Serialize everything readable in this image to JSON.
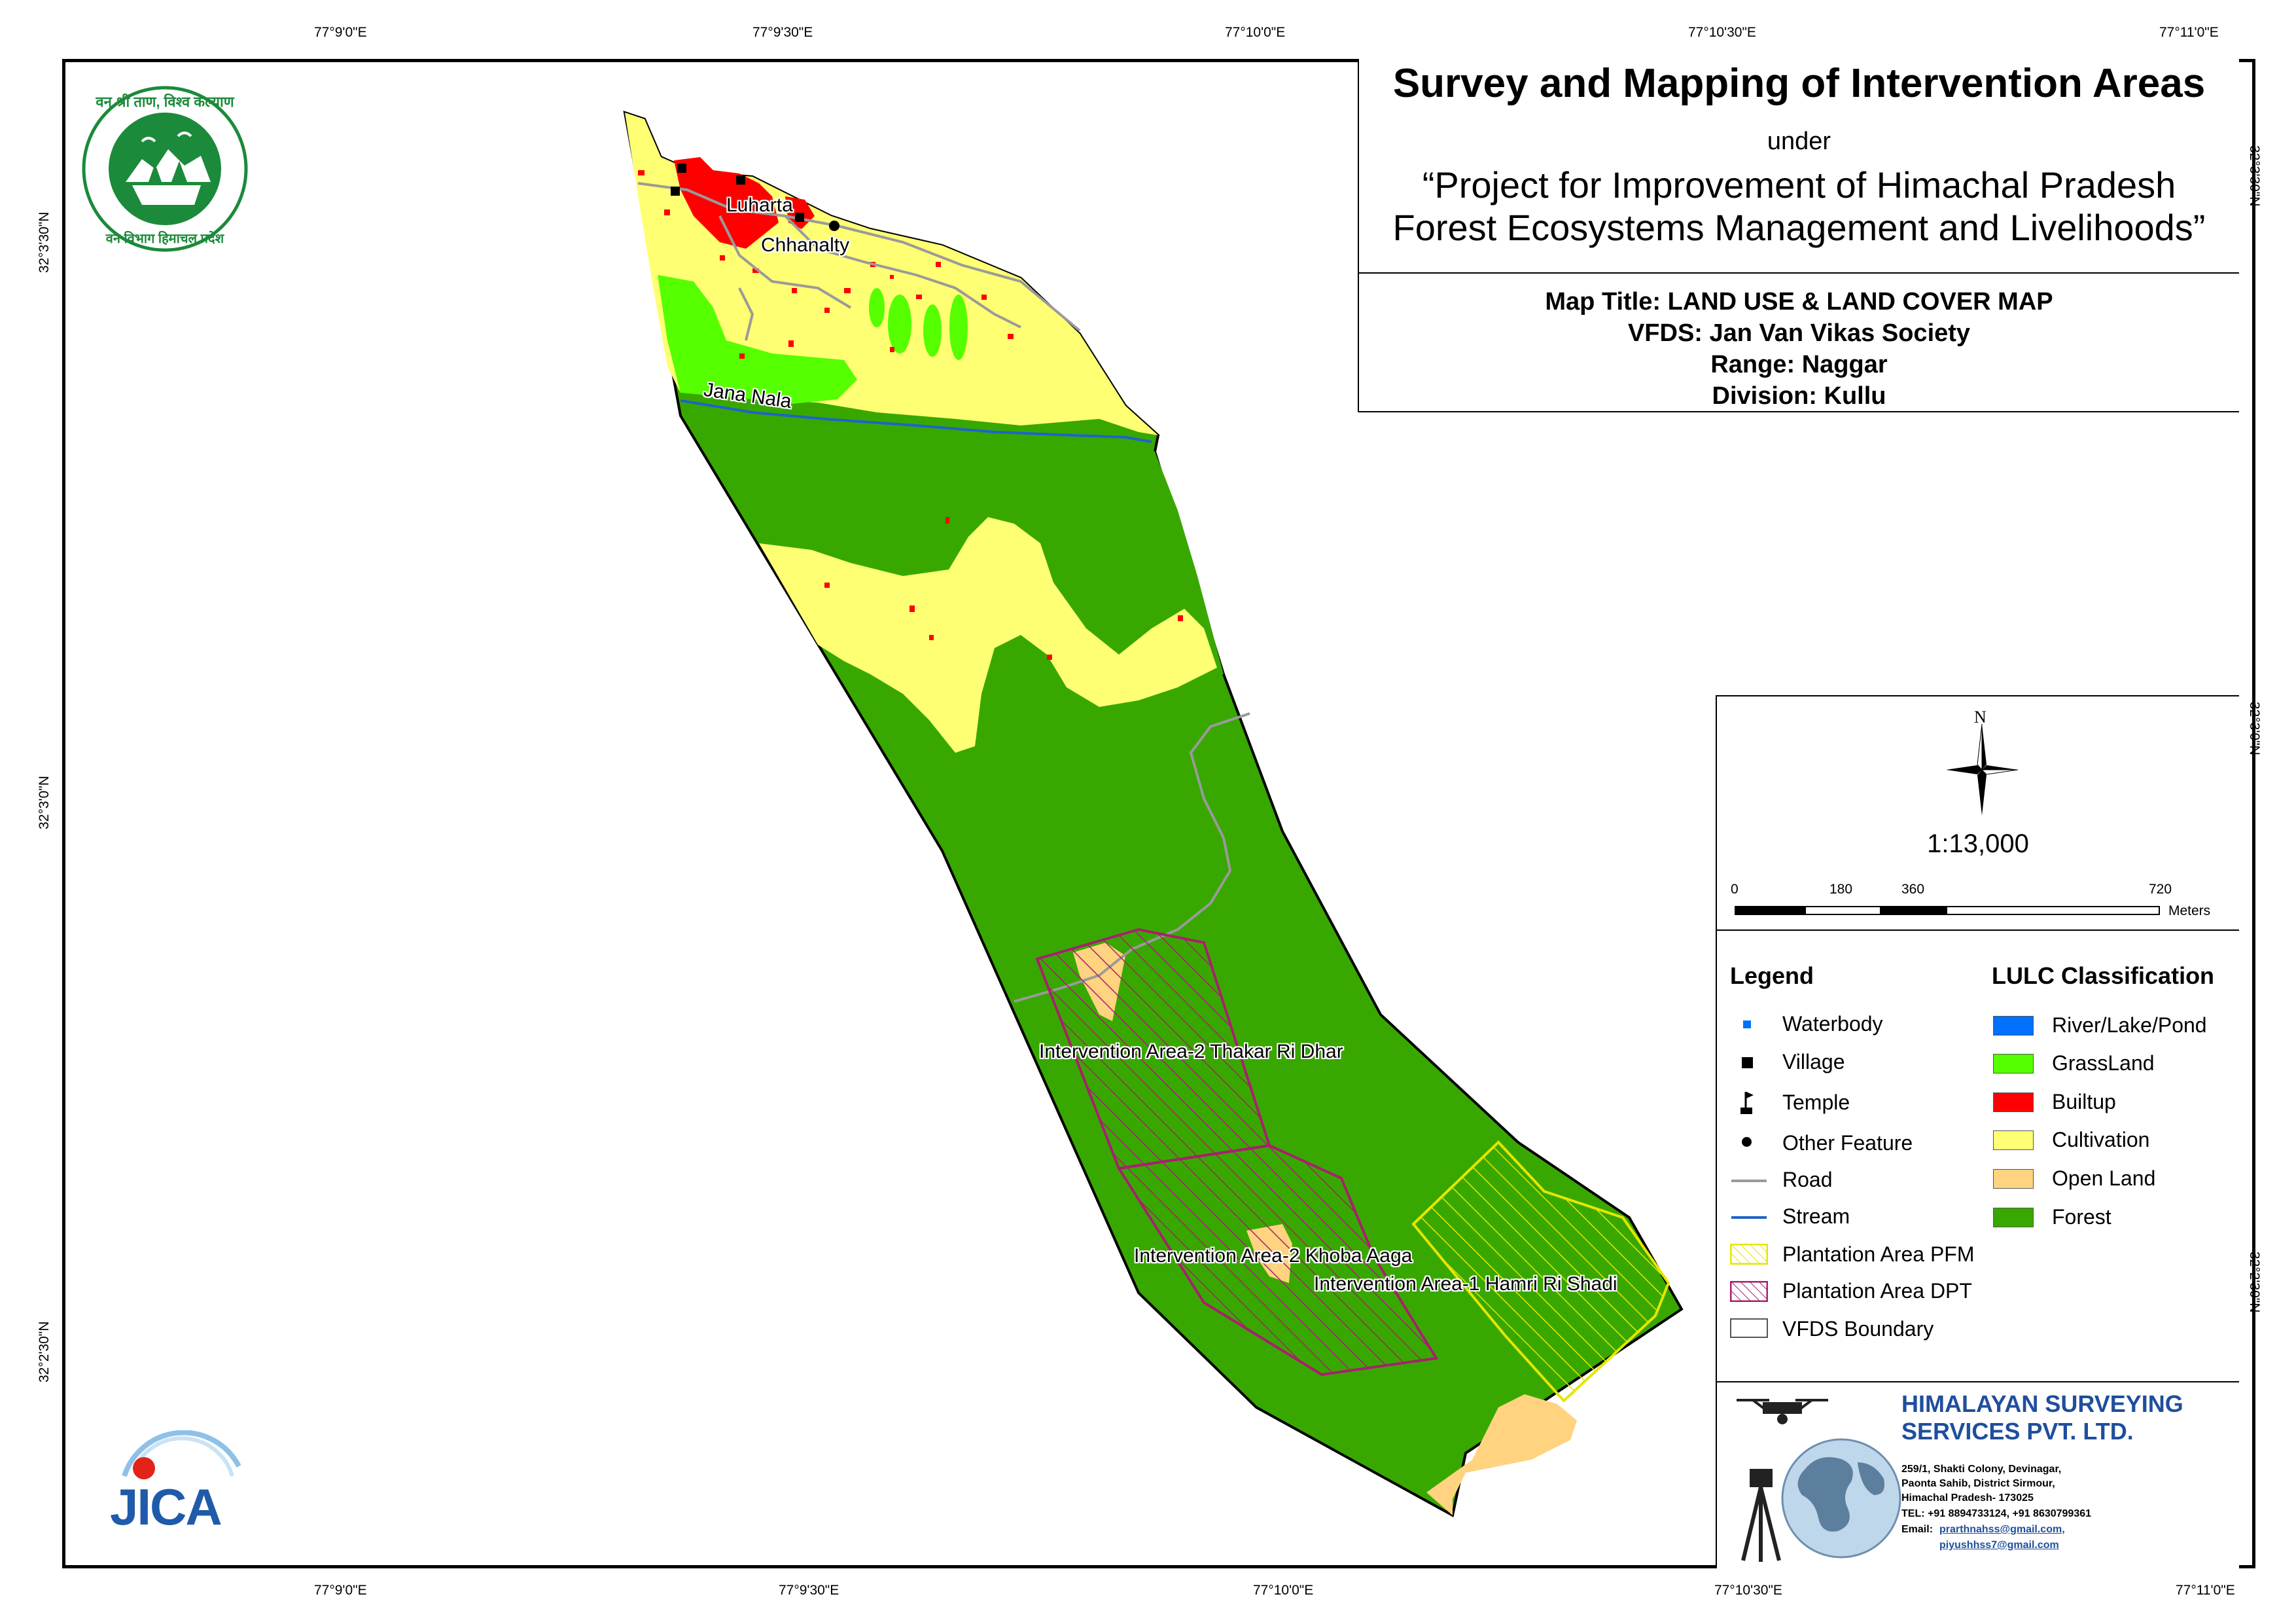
{
  "coords": {
    "top": [
      "77°9'0\"E",
      "77°9'30\"E",
      "77°10'0\"E",
      "77°10'30\"E",
      "77°11'0\"E"
    ],
    "bottom": [
      "77°9'0\"E",
      "77°9'30\"E",
      "77°10'0\"E",
      "77°10'30\"E",
      "77°11'0\"E"
    ],
    "left": [
      "32°3'30\"N",
      "32°3'0\"N",
      "32°2'30\"N"
    ],
    "right": [
      "32°3'30\"N",
      "32°3'0\"N",
      "32°2'30\"N"
    ]
  },
  "title": {
    "main": "Survey and Mapping of Intervention Areas",
    "under": "under",
    "project_line1": "“Project for Improvement of Himachal Pradesh",
    "project_line2": "Forest Ecosystems Management and Livelihoods”"
  },
  "map_info": {
    "map_title": "Map Title: LAND USE & LAND COVER MAP",
    "vfds": "VFDS: Jan Van Vikas Society",
    "range": "Range: Naggar",
    "division": "Division: Kullu"
  },
  "north_label": "N",
  "scale": {
    "ratio": "1:13,000",
    "ticks": [
      "0",
      "180",
      "360",
      "720"
    ],
    "unit": "Meters"
  },
  "legend": {
    "title": "Legend",
    "items": [
      {
        "label": "Waterbody",
        "icon": "waterbody-icon"
      },
      {
        "label": "Village",
        "icon": "village-icon"
      },
      {
        "label": "Temple",
        "icon": "temple-icon"
      },
      {
        "label": "Other Feature",
        "icon": "other-feature-icon"
      },
      {
        "label": "Road",
        "icon": "road-line-icon"
      },
      {
        "label": "Stream",
        "icon": "stream-line-icon"
      },
      {
        "label": "Plantation Area PFM",
        "icon": "pfm-hatch-icon"
      },
      {
        "label": "Plantation Area DPT",
        "icon": "dpt-hatch-icon"
      },
      {
        "label": "VFDS Boundary",
        "icon": "boundary-box-icon"
      }
    ]
  },
  "lulc": {
    "title": "LULC Classification",
    "items": [
      {
        "label": "River/Lake/Pond",
        "color": "#0070FF"
      },
      {
        "label": "GrassLand",
        "color": "#55FF00"
      },
      {
        "label": "Builtup",
        "color": "#FF0000"
      },
      {
        "label": "Cultivation",
        "color": "#FFFF73"
      },
      {
        "label": "Open Land",
        "color": "#FFD37F"
      },
      {
        "label": "Forest",
        "color": "#38A800"
      }
    ]
  },
  "map_labels": {
    "luharta": "Luharta",
    "chhanalty": "Chhanalty",
    "jana_nala": "Jana Nala",
    "ia2_thakar": "Intervention Area-2 Thakar Ri Dhar",
    "ia2_khoba": "Intervention Area-2 Khoba Aaga",
    "ia1_hamri": "Intervention Area-1 Hamri Ri Shadi"
  },
  "logos": {
    "forest_dept_top": "वन श्री ताण, विश्व कल्याण",
    "forest_dept_bottom": "वन विभाग हिमाचल प्रदेश",
    "jica": "JICA"
  },
  "company": {
    "name_line1": "HIMALAYAN SURVEYING",
    "name_line2": "SERVICES PVT. LTD.",
    "address1": "259/1, Shakti Colony, Devinagar,",
    "address2": "Paonta Sahib, District Sirmour,",
    "address3": "Himachal Pradesh- 173025",
    "tel": "TEL: +91 8894733124, +91 8630799361",
    "email_label": "Email:",
    "email1": "prarthnahss@gmail.com,",
    "email2": "piyushhss7@gmail.com"
  },
  "colors": {
    "forest": "#38A800",
    "cultivation": "#FFFF73",
    "grassland": "#55FF00",
    "builtup": "#FF0000",
    "openland": "#FFD37F",
    "water": "#0070FF",
    "pfm": "#E6E600",
    "dpt": "#A8206E",
    "company_blue": "#1F4E9C"
  }
}
